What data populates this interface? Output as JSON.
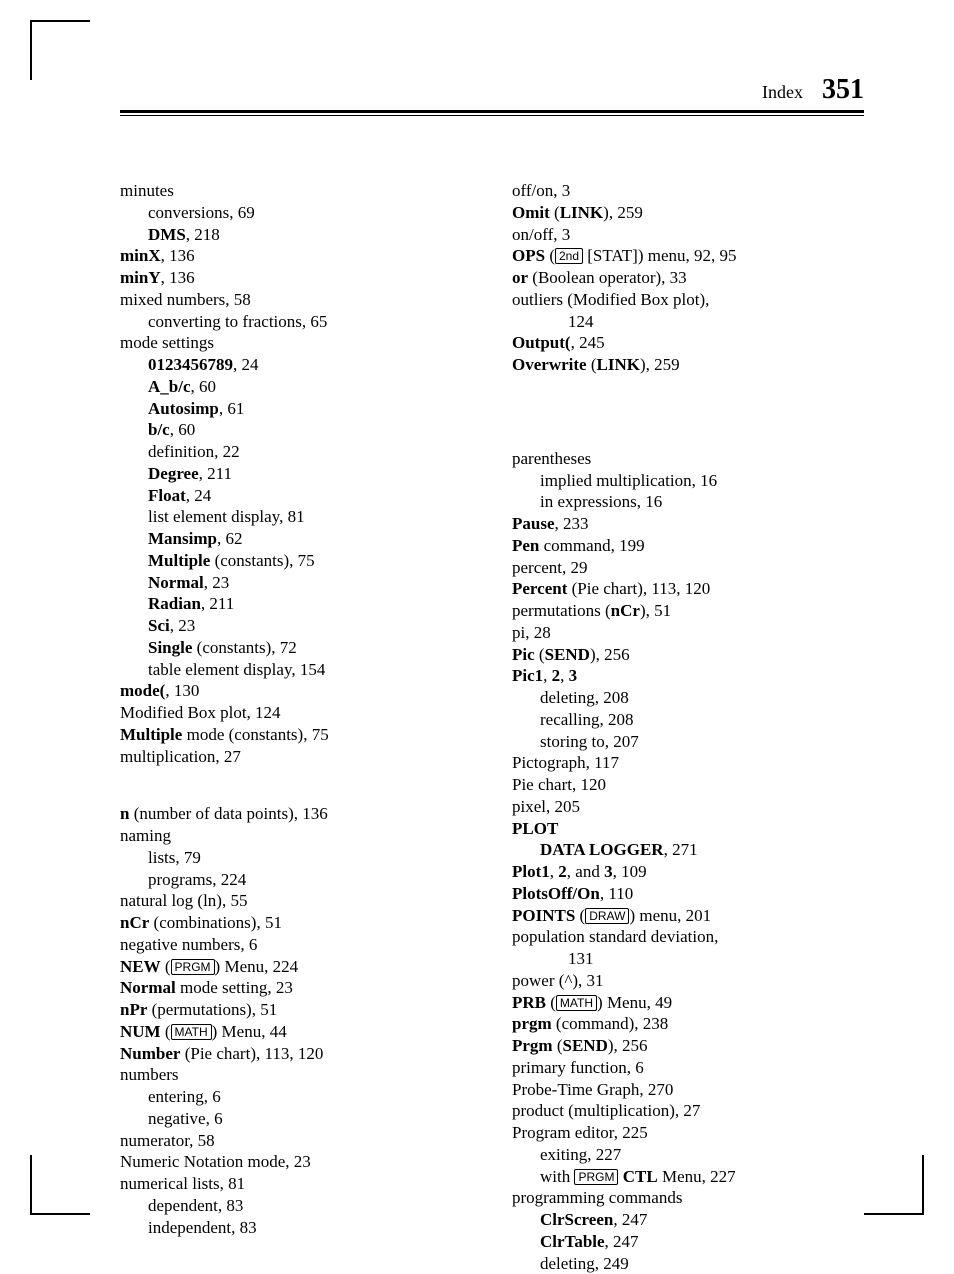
{
  "header": {
    "label": "Index",
    "page": "351"
  },
  "left": [
    {
      "t": "minutes",
      "i": 0
    },
    {
      "t": "conversions, 69",
      "i": 1
    },
    {
      "html": "<span class='b'>DMS</span>, 218",
      "i": 1
    },
    {
      "html": "<span class='b'>minX</span>, 136",
      "i": 0
    },
    {
      "html": "<span class='b'>minY</span>, 136",
      "i": 0
    },
    {
      "t": "mixed numbers, 58",
      "i": 0
    },
    {
      "t": "converting to fractions, 65",
      "i": 1
    },
    {
      "t": "mode settings",
      "i": 0
    },
    {
      "html": "<span class='b'>0123456789</span>, 24",
      "i": 1
    },
    {
      "html": "<span class='b'>A_b/c</span>, 60",
      "i": 1
    },
    {
      "html": "<span class='b'>Autosimp</span>, 61",
      "i": 1
    },
    {
      "html": "<span class='b'>b/c</span>, 60",
      "i": 1
    },
    {
      "t": "definition, 22",
      "i": 1
    },
    {
      "html": "<span class='b'>Degree</span>, 211",
      "i": 1
    },
    {
      "html": "<span class='b'>Float</span>, 24",
      "i": 1
    },
    {
      "t": "list element display, 81",
      "i": 1
    },
    {
      "html": "<span class='b'>Mansimp</span>, 62",
      "i": 1
    },
    {
      "html": "<span class='b'>Multiple</span> (constants), 75",
      "i": 1
    },
    {
      "html": "<span class='b'>Normal</span>, 23",
      "i": 1
    },
    {
      "html": "<span class='b'>Radian</span>, 211",
      "i": 1
    },
    {
      "html": "<span class='b'>Sci</span>, 23",
      "i": 1
    },
    {
      "html": "<span class='b'>Single</span> (constants), 72",
      "i": 1
    },
    {
      "t": "table element display, 154",
      "i": 1
    },
    {
      "html": "<span class='b'>mode(</span>, 130",
      "i": 0
    },
    {
      "t": "Modified Box plot, 124",
      "i": 0
    },
    {
      "html": "<span class='b'>Multiple</span> mode (constants), 75",
      "i": 0
    },
    {
      "t": "multiplication, 27",
      "i": 0
    },
    {
      "gap": true
    },
    {
      "html": "<span class='b'>n</span> (number of data points), 136",
      "i": 0
    },
    {
      "t": "naming",
      "i": 0
    },
    {
      "t": "lists, 79",
      "i": 1
    },
    {
      "t": "programs, 224",
      "i": 1
    },
    {
      "t": "natural log (ln), 55",
      "i": 0
    },
    {
      "html": "<span class='b'>nCr</span> (combinations), 51",
      "i": 0
    },
    {
      "t": "negative numbers, 6",
      "i": 0
    },
    {
      "html": "<span class='b'>NEW</span> (<span class='keycap'>PRGM</span>) Menu, 224",
      "i": 0
    },
    {
      "html": "<span class='b'>Normal</span> mode setting, 23",
      "i": 0
    },
    {
      "html": "<span class='b'>nPr</span> (permutations), 51",
      "i": 0
    },
    {
      "html": "<span class='b'>NUM</span> (<span class='keycap'>MATH</span>) Menu, 44",
      "i": 0
    },
    {
      "html": "<span class='b'>Number</span> (Pie chart), 113, 120",
      "i": 0
    },
    {
      "t": "numbers",
      "i": 0
    },
    {
      "t": "entering, 6",
      "i": 1
    },
    {
      "t": "negative, 6",
      "i": 1
    },
    {
      "t": "numerator, 58",
      "i": 0
    },
    {
      "t": "Numeric Notation mode, 23",
      "i": 0
    },
    {
      "t": "numerical lists, 81",
      "i": 0
    },
    {
      "t": "dependent, 83",
      "i": 1
    },
    {
      "t": "independent, 83",
      "i": 1
    }
  ],
  "right": [
    {
      "t": "off/on, 3",
      "i": 0
    },
    {
      "html": "<span class='b'>Omit</span> (<span class='b'>LINK</span>), 259",
      "i": 0
    },
    {
      "t": "on/off, 3",
      "i": 0
    },
    {
      "html": "<span class='b'>OPS</span> (<span class='keycap'>2nd</span> [STAT]) menu, 92, 95",
      "i": 0
    },
    {
      "html": "<span class='b'>or</span> (Boolean operator), 33",
      "i": 0
    },
    {
      "t": "outliers (Modified Box plot),",
      "i": 0,
      "hang": true
    },
    {
      "t": "124",
      "i": 2
    },
    {
      "html": "<span class='b'>Output(</span>, 245",
      "i": 0
    },
    {
      "html": "<span class='b'>Overwrite</span> (<span class='b'>LINK</span>), 259",
      "i": 0
    },
    {
      "gap": true
    },
    {
      "gap": true
    },
    {
      "t": "parentheses",
      "i": 0
    },
    {
      "t": "implied multiplication, 16",
      "i": 1
    },
    {
      "t": "in expressions, 16",
      "i": 1
    },
    {
      "html": "<span class='b'>Pause</span>, 233",
      "i": 0
    },
    {
      "html": "<span class='b'>Pen</span> command, 199",
      "i": 0
    },
    {
      "t": "percent, 29",
      "i": 0
    },
    {
      "html": "<span class='b'>Percent</span> (Pie chart), 113, 120",
      "i": 0
    },
    {
      "html": "permutations (<span class='b'>nCr</span>), 51",
      "i": 0
    },
    {
      "t": "pi, 28",
      "i": 0
    },
    {
      "html": "<span class='b'>Pic</span> (<span class='b'>SEND</span>), 256",
      "i": 0
    },
    {
      "html": "<span class='b'>Pic1</span>, <span class='b'>2</span>, <span class='b'>3</span>",
      "i": 0
    },
    {
      "t": "deleting, 208",
      "i": 1
    },
    {
      "t": "recalling, 208",
      "i": 1
    },
    {
      "t": "storing to, 207",
      "i": 1
    },
    {
      "t": "Pictograph, 117",
      "i": 0
    },
    {
      "t": "Pie chart, 120",
      "i": 0
    },
    {
      "t": "pixel, 205",
      "i": 0
    },
    {
      "html": "<span class='b'>PLOT</span>",
      "i": 0
    },
    {
      "html": "<span class='b'>DATA LOGGER</span>, 271",
      "i": 1
    },
    {
      "html": "<span class='b'>Plot1</span>, <span class='b'>2</span>, and <span class='b'>3</span>, 109",
      "i": 0
    },
    {
      "html": "<span class='b'>PlotsOff/On</span>, 110",
      "i": 0
    },
    {
      "html": "<span class='b'>POINTS</span> (<span class='keycap'>DRAW</span>) menu, 201",
      "i": 0
    },
    {
      "t": "population standard deviation,",
      "i": 0,
      "hang": true
    },
    {
      "t": "131",
      "i": 2
    },
    {
      "t": "power (^), 31",
      "i": 0
    },
    {
      "html": "<span class='b'>PRB</span> (<span class='keycap'>MATH</span>) Menu, 49",
      "i": 0
    },
    {
      "html": "<span class='b'>prgm</span> (command), 238",
      "i": 0
    },
    {
      "html": "<span class='b'>Prgm</span> (<span class='b'>SEND</span>), 256",
      "i": 0
    },
    {
      "t": "primary function, 6",
      "i": 0
    },
    {
      "t": "Probe-Time Graph, 270",
      "i": 0
    },
    {
      "t": "product (multiplication), 27",
      "i": 0
    },
    {
      "t": "Program editor, 225",
      "i": 0
    },
    {
      "t": "exiting, 227",
      "i": 1
    },
    {
      "html": "with <span class='keycap'>PRGM</span> <span class='b'>CTL</span> Menu, 227",
      "i": 1
    },
    {
      "t": "programming commands",
      "i": 0
    },
    {
      "html": "<span class='b'>ClrScreen</span>, 247",
      "i": 1
    },
    {
      "html": "<span class='b'>ClrTable</span>, 247",
      "i": 1
    },
    {
      "t": "deleting, 249",
      "i": 1
    }
  ]
}
